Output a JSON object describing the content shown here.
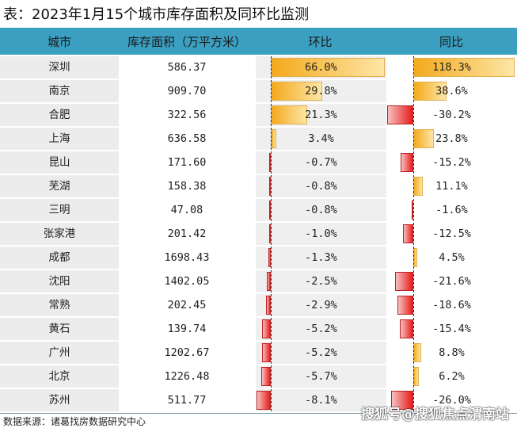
{
  "title": "表：2023年1月15个城市库存面积及同环比监测",
  "source": "数据来源：诸葛找房数据研究中心",
  "watermark": "搜狐号@搜狐焦点渭南站",
  "chart_data": {
    "type": "table",
    "headers": [
      "城市",
      "库存面积（万平方米）",
      "环比",
      "同比"
    ],
    "rows": [
      {
        "city": "深圳",
        "area": "586.37",
        "mom": 66.0,
        "yoy": 118.3
      },
      {
        "city": "南京",
        "area": "909.70",
        "mom": 29.8,
        "yoy": 38.6
      },
      {
        "city": "合肥",
        "area": "322.56",
        "mom": 21.3,
        "yoy": -30.2
      },
      {
        "city": "上海",
        "area": "636.58",
        "mom": 3.4,
        "yoy": 23.8
      },
      {
        "city": "昆山",
        "area": "171.60",
        "mom": -0.7,
        "yoy": -15.2
      },
      {
        "city": "芜湖",
        "area": "158.38",
        "mom": -0.8,
        "yoy": 11.1
      },
      {
        "city": "三明",
        "area": "47.08",
        "mom": -0.8,
        "yoy": -1.6
      },
      {
        "city": "张家港",
        "area": "201.42",
        "mom": -1.0,
        "yoy": -12.5
      },
      {
        "city": "成都",
        "area": "1698.43",
        "mom": -1.3,
        "yoy": 4.5
      },
      {
        "city": "沈阳",
        "area": "1402.05",
        "mom": -2.5,
        "yoy": -21.6
      },
      {
        "city": "常熟",
        "area": "202.45",
        "mom": -2.9,
        "yoy": -18.6
      },
      {
        "city": "黄石",
        "area": "139.74",
        "mom": -5.2,
        "yoy": -15.4
      },
      {
        "city": "广州",
        "area": "1202.67",
        "mom": -5.2,
        "yoy": 8.8
      },
      {
        "city": "北京",
        "area": "1226.48",
        "mom": -5.7,
        "yoy": 6.2
      },
      {
        "city": "苏州",
        "area": "511.77",
        "mom": -8.1,
        "yoy": -26.0
      }
    ],
    "colors": {
      "header": "#3a9fc0",
      "positive": "#f4a91c",
      "negative": "#e81c1c"
    }
  }
}
